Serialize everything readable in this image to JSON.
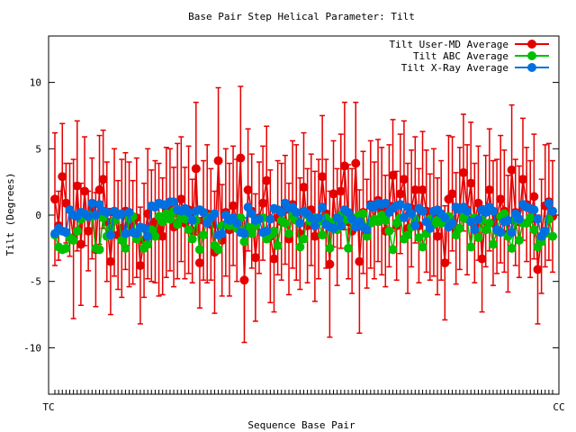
{
  "chart_data": {
    "type": "line",
    "title": "Base Pair Step Helical Parameter: Tilt",
    "xlabel": "Sequence Base Pair",
    "ylabel": "Tilt (Degrees)",
    "ylim": [
      -13.5,
      13.5
    ],
    "yticks": [
      -10,
      -5,
      0,
      5,
      10
    ],
    "grid": false,
    "legend_position": "top-right",
    "x_tick_labels": {
      "first": "TC",
      "last": "CC"
    },
    "series": [
      {
        "name": "Tilt User-MD Average",
        "color": "#e50000",
        "error_bars": true,
        "values": [
          1.2,
          -0.8,
          2.9,
          0.9,
          0.4,
          -1.8,
          2.2,
          -2.2,
          1.8,
          -1.2,
          0.5,
          -2.6,
          1.9,
          2.7,
          -0.5,
          -3.5,
          0.2,
          -1.5,
          -1.0,
          0.3,
          -0.7,
          -1.3,
          -0.2,
          -3.8,
          -1.9,
          0.1,
          -0.8,
          -0.5,
          -1.1,
          -1.6,
          0.2,
          0.4,
          -0.9,
          0.3,
          1.2,
          -0.6,
          0.4,
          -1.2,
          3.5,
          -3.6,
          -0.4,
          0.1,
          -0.7,
          -2.8,
          4.1,
          -1.9,
          0.2,
          -1.1,
          0.7,
          -0.4,
          4.3,
          -4.9,
          1.9,
          0.3,
          -3.2,
          -0.2,
          0.9,
          2.6,
          -1.6,
          -3.3,
          -0.2,
          -0.5,
          0.4,
          -1.8,
          0.8,
          0.2,
          -1.4,
          2.1,
          -0.8,
          0.4,
          -1.6,
          -0.3,
          2.9,
          0.1,
          -3.7,
          1.6,
          -0.9,
          1.8,
          3.7,
          -0.5,
          -1.2,
          3.9,
          -3.5,
          0.2,
          -1.4,
          0.8,
          -0.4,
          1.1,
          0.3,
          -1.2,
          0.7,
          3.0,
          -0.8,
          1.6,
          2.7,
          -1.0,
          0.5,
          1.9,
          -0.8,
          1.9,
          0.3,
          -0.9,
          0.2,
          -1.6,
          -0.4,
          -3.6,
          1.2,
          1.6,
          -1.0,
          0.5,
          3.2,
          0.4,
          2.4,
          -0.6,
          0.9,
          -3.3,
          0.3,
          1.9,
          -0.6,
          -0.1,
          1.2,
          0.3,
          -1.4,
          3.4,
          0.2,
          -0.5,
          2.7,
          0.8,
          -0.3,
          1.4,
          -4.1,
          -1.6,
          0.7,
          1.0,
          -0.1
        ],
        "errors": [
          5.0,
          2.6,
          4.0,
          3.0,
          3.5,
          6.0,
          4.9,
          4.6,
          4.1,
          3.0,
          3.8,
          4.3,
          4.1,
          3.7,
          4.5,
          4.0,
          4.8,
          4.1,
          5.2,
          4.4,
          4.7,
          3.9,
          4.5,
          4.4,
          4.3,
          4.9,
          4.2,
          4.6,
          5.0,
          4.4,
          4.9,
          4.6,
          4.5,
          5.1,
          4.7,
          4.2,
          4.8,
          3.9,
          5.0,
          3.4,
          4.5,
          5.2,
          4.2,
          4.6,
          5.5,
          4.2,
          4.8,
          5.0,
          4.5,
          4.6,
          5.4,
          4.7,
          4.6,
          4.3,
          4.8,
          4.2,
          4.3,
          4.1,
          5.0,
          4.0,
          4.3,
          4.4,
          4.1,
          4.2,
          4.8,
          5.1,
          4.2,
          4.1,
          4.3,
          4.2,
          4.9,
          4.5,
          4.6,
          4.1,
          5.5,
          4.0,
          4.4,
          4.3,
          4.8,
          4.3,
          4.7,
          4.6,
          5.4,
          4.6,
          4.1,
          4.8,
          4.4,
          4.6,
          4.8,
          4.2,
          4.6,
          4.2,
          4.1,
          4.5,
          4.4,
          4.9,
          4.4,
          4.0,
          4.3,
          4.4,
          4.6,
          4.0,
          4.8,
          4.4,
          4.5,
          4.3,
          4.8,
          4.3,
          4.2,
          4.6,
          4.4,
          4.9,
          4.6,
          4.5,
          4.3,
          4.0,
          4.2,
          4.6,
          4.7,
          4.3,
          4.8,
          4.6,
          4.4,
          4.9,
          4.0,
          4.2,
          4.6,
          4.3,
          4.4,
          4.7,
          4.1,
          4.3,
          4.6,
          4.4,
          4.2
        ]
      },
      {
        "name": "Tilt ABC Average",
        "color": "#00c000",
        "error_bars": false,
        "values": [
          -1.5,
          -2.4,
          -2.6,
          -2.5,
          -1.7,
          -1.9,
          -1.2,
          -0.3,
          -0.1,
          0.0,
          -0.1,
          -2.5,
          -2.6,
          -0.2,
          -1.6,
          -1.0,
          -0.4,
          0.1,
          -1.9,
          -2.5,
          -0.3,
          -0.1,
          -1.8,
          -1.0,
          -2.5,
          -2.2,
          -1.1,
          -1.6,
          -0.1,
          -0.5,
          0.1,
          -0.3,
          0.3,
          -0.7,
          -0.1,
          -0.3,
          -1.1,
          -1.8,
          -0.4,
          -2.6,
          -1.5,
          -0.3,
          -0.1,
          -2.3,
          -2.6,
          -0.8,
          -0.7,
          -0.8,
          -0.4,
          -1.0,
          -0.2,
          -2.0,
          -0.9,
          -1.4,
          -0.8,
          -0.3,
          -0.2,
          -1.8,
          -1.5,
          -1.2,
          -2.3,
          -0.4,
          -0.6,
          -1.4,
          -0.1,
          -0.4,
          -2.4,
          -1.8,
          0.0,
          -0.5,
          -0.2,
          -0.5,
          -1.5,
          -0.2,
          -2.5,
          -0.5,
          -1.1,
          0.0,
          -0.4,
          -2.5,
          -0.4,
          -0.2,
          0.0,
          0.1,
          -1.6,
          -0.6,
          -0.3,
          -0.5,
          0.0,
          -0.4,
          -1.2,
          -2.6,
          -0.6,
          -0.2,
          -1.8,
          -1.5,
          -0.9,
          -0.3,
          -1.7,
          -2.4,
          -1.4,
          -0.3,
          -0.7,
          -0.4,
          -0.6,
          -0.4,
          -0.1,
          -0.6,
          -1.5,
          -1.0,
          -0.2,
          -0.3,
          -2.4,
          -0.2,
          -1.7,
          -0.4,
          -1.1,
          -0.6,
          -2.2,
          -1.2,
          -0.1,
          0.1,
          -1.6,
          -2.5,
          -0.4,
          -1.9,
          -0.6,
          -0.6,
          -0.2,
          -1.1,
          -2.4,
          -2.0,
          -1.4,
          -0.3,
          -1.6
        ]
      },
      {
        "name": "Tilt X-Ray Average",
        "color": "#0070e0",
        "error_bars": false,
        "values": [
          -1.4,
          -1.0,
          -1.2,
          -1.3,
          0.4,
          0.0,
          -0.1,
          0.2,
          0.1,
          -0.1,
          0.9,
          0.0,
          0.8,
          0.3,
          0.2,
          -1.5,
          0.3,
          0.0,
          0.1,
          -1.4,
          0.2,
          -1.3,
          -1.4,
          -0.9,
          -1.0,
          -1.6,
          0.7,
          0.6,
          0.9,
          0.8,
          0.8,
          1.0,
          1.0,
          0.4,
          0.3,
          0.5,
          0.2,
          -0.4,
          0.3,
          0.4,
          0.2,
          -0.6,
          -0.2,
          0.1,
          -1.5,
          -1.4,
          0.0,
          -0.4,
          -0.2,
          -0.6,
          -1.3,
          -1.4,
          0.6,
          0.1,
          -0.4,
          -0.3,
          -1.3,
          -1.2,
          -0.3,
          0.5,
          0.4,
          0.2,
          0.9,
          0.5,
          0.6,
          0.2,
          -0.6,
          0.3,
          0.1,
          -0.2,
          -0.8,
          -0.2,
          0.6,
          -0.7,
          -0.9,
          -1.0,
          -0.2,
          -0.8,
          0.4,
          0.2,
          -0.3,
          -0.9,
          -0.5,
          -0.9,
          -1.1,
          0.7,
          0.6,
          0.9,
          0.8,
          0.9,
          0.2,
          0.5,
          0.7,
          0.8,
          -0.2,
          0.6,
          0.1,
          -0.8,
          0.5,
          0.3,
          -0.5,
          -1.0,
          0.3,
          0.4,
          0.1,
          -0.2,
          -0.9,
          -0.6,
          0.6,
          0.4,
          0.6,
          0.3,
          -0.5,
          -1.1,
          -0.3,
          0.4,
          0.2,
          0.6,
          0.3,
          -1.1,
          -1.3,
          -0.5,
          -0.4,
          -1.3,
          0.1,
          -0.3,
          0.8,
          0.6,
          0.5,
          0.4,
          -0.3,
          -1.6,
          -1.2,
          0.9,
          0.3
        ]
      }
    ]
  }
}
